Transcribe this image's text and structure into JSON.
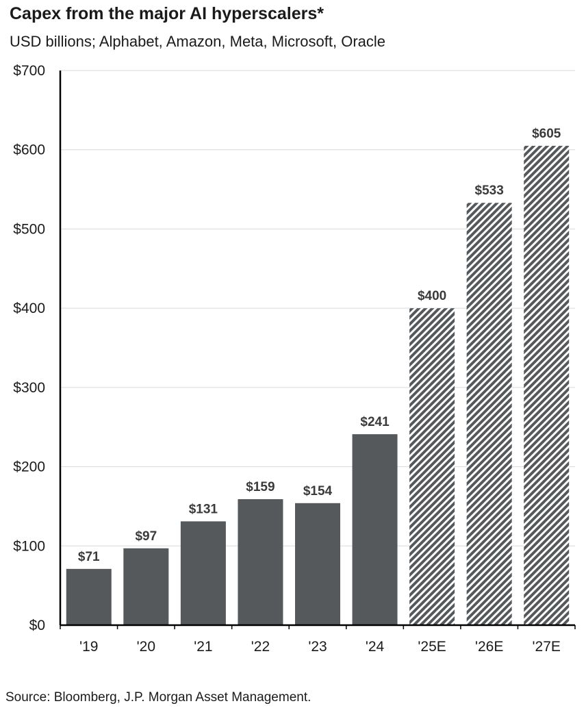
{
  "chart_data": {
    "type": "bar",
    "title": "Capex from the major AI hyperscalers*",
    "subtitle": "USD billions; Alphabet, Amazon, Meta, Microsoft, Oracle",
    "categories": [
      "'19",
      "'20",
      "'21",
      "'22",
      "'23",
      "'24",
      "'25E",
      "'26E",
      "'27E"
    ],
    "values": [
      71,
      97,
      131,
      159,
      154,
      241,
      400,
      533,
      605
    ],
    "data_labels": [
      "$71",
      "$97",
      "$131",
      "$159",
      "$154",
      "$241",
      "$400",
      "$533",
      "$605"
    ],
    "estimate": [
      false,
      false,
      false,
      false,
      false,
      false,
      true,
      true,
      true
    ],
    "y_ticks": [
      0,
      100,
      200,
      300,
      400,
      500,
      600,
      700
    ],
    "y_tick_labels": [
      "$0",
      "$100",
      "$200",
      "$300",
      "$400",
      "$500",
      "$600",
      "$700"
    ],
    "ylim": [
      0,
      700
    ],
    "xlabel": "",
    "ylabel": "",
    "grid": true,
    "colors": {
      "actual": "#55595c",
      "estimate_stripe": "#55595c",
      "estimate_bg": "#ffffff",
      "grid": "#d9d9d9",
      "axis": "#000000"
    }
  },
  "source": "Source: Bloomberg, J.P. Morgan Asset Management."
}
